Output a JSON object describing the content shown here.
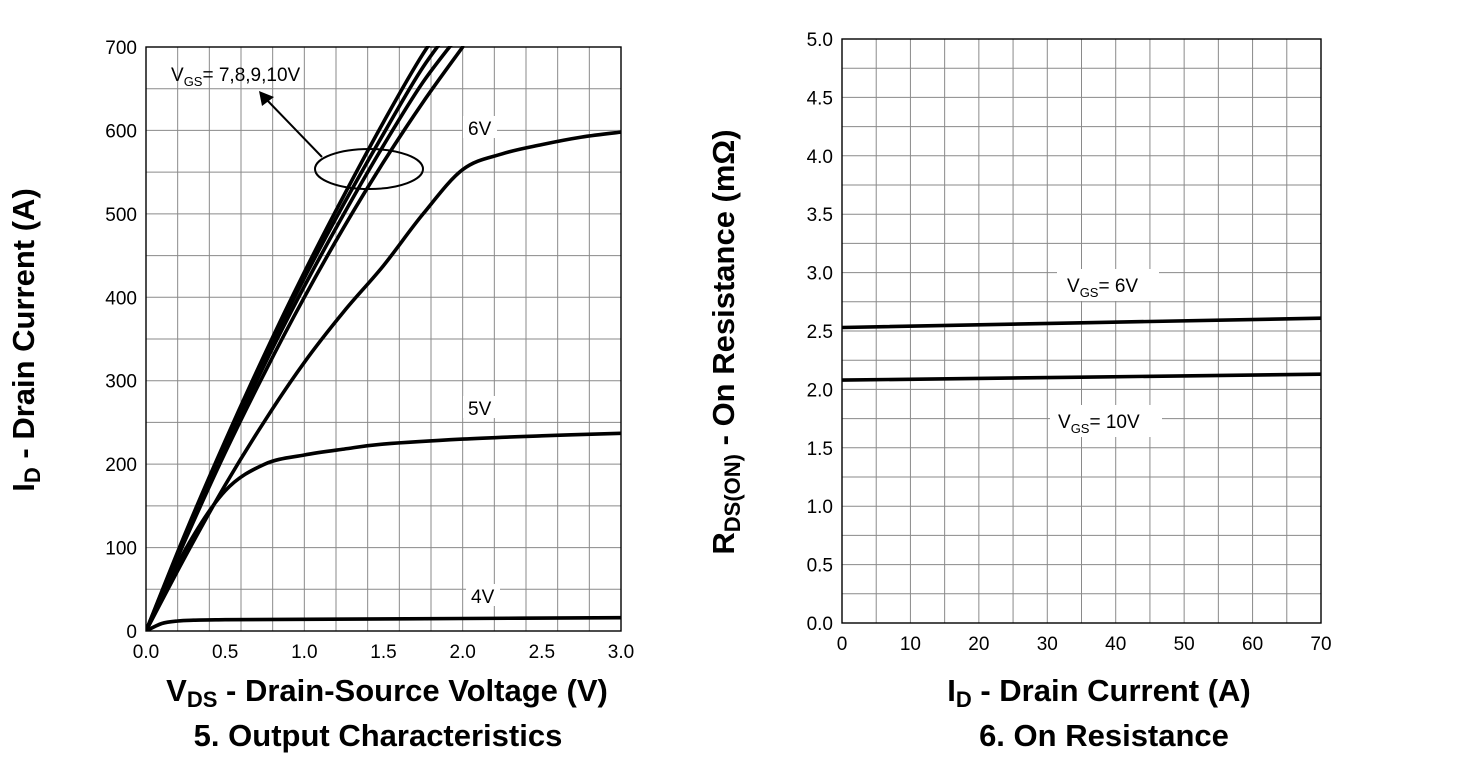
{
  "chart_data": [
    {
      "type": "line",
      "title": "",
      "caption_number": "5.",
      "caption_text": "Output Characteristics",
      "xlabel_main": "V",
      "xlabel_sub": "DS",
      "xlabel_rest": " - Drain-Source Voltage (V)",
      "ylabel_main": "I",
      "ylabel_sub": "D",
      "ylabel_rest": " - Drain Current (A)",
      "xlim": [
        0,
        3.0
      ],
      "ylim": [
        0,
        700
      ],
      "xticks": [
        "0.0",
        "0.5",
        "1.0",
        "1.5",
        "2.0",
        "2.5",
        "3.0"
      ],
      "yticks": [
        "0",
        "100",
        "200",
        "300",
        "400",
        "500",
        "600",
        "700"
      ],
      "grid": true,
      "series": [
        {
          "name": "VGS=10V",
          "x": [
            0,
            0.25,
            0.5,
            0.75,
            1.0,
            1.25,
            1.5,
            1.75,
            2.0
          ],
          "y": [
            0,
            118,
            228,
            332,
            430,
            522,
            610,
            692,
            760
          ]
        },
        {
          "name": "VGS=9V",
          "x": [
            0,
            0.25,
            0.5,
            0.75,
            1.0,
            1.25,
            1.5,
            1.75,
            2.0
          ],
          "y": [
            0,
            116,
            225,
            327,
            423,
            512,
            596,
            676,
            740
          ]
        },
        {
          "name": "VGS=8V",
          "x": [
            0,
            0.25,
            0.5,
            0.75,
            1.0,
            1.25,
            1.5,
            1.75,
            2.0
          ],
          "y": [
            0,
            113,
            220,
            320,
            413,
            500,
            582,
            658,
            720
          ]
        },
        {
          "name": "VGS=7V",
          "x": [
            0,
            0.25,
            0.5,
            0.75,
            1.0,
            1.25,
            1.5,
            1.75,
            2.0
          ],
          "y": [
            0,
            110,
            214,
            310,
            400,
            484,
            562,
            634,
            700
          ]
        },
        {
          "name": "VGS=6V",
          "x": [
            0,
            0.25,
            0.5,
            0.75,
            1.0,
            1.25,
            1.5,
            1.75,
            2.0,
            2.25,
            2.5,
            2.75,
            3.0
          ],
          "y": [
            0,
            90,
            175,
            252,
            322,
            383,
            438,
            500,
            553,
            572,
            583,
            592,
            598
          ]
        },
        {
          "name": "VGS=5V",
          "x": [
            0,
            0.25,
            0.5,
            0.75,
            1.0,
            1.25,
            1.5,
            2.0,
            2.5,
            3.0
          ],
          "y": [
            0,
            98,
            168,
            200,
            211,
            218,
            224,
            230,
            234,
            237
          ]
        },
        {
          "name": "VGS=4V",
          "x": [
            0,
            0.1,
            0.2,
            0.3,
            0.5,
            1.0,
            2.0,
            3.0
          ],
          "y": [
            0,
            9,
            12,
            13,
            13.5,
            14,
            15,
            16
          ]
        }
      ],
      "annotations": {
        "vgs_group_main": "V",
        "vgs_group_sub": "GS",
        "vgs_group_rest": "= 7,8,9,10V",
        "label_6v": "6V",
        "label_5v": "5V",
        "label_4v": "4V"
      }
    },
    {
      "type": "line",
      "title": "",
      "caption_number": "6.",
      "caption_text": "On Resistance",
      "xlabel_main": "I",
      "xlabel_sub": "D",
      "xlabel_rest": " - Drain Current (A)",
      "ylabel_main": "R",
      "ylabel_sub": "DS(ON)",
      "ylabel_rest": " - On Resistance (mΩ)",
      "xlim": [
        0,
        70
      ],
      "ylim": [
        0,
        5.0
      ],
      "xticks": [
        "0",
        "10",
        "20",
        "30",
        "40",
        "50",
        "60",
        "70"
      ],
      "yticks": [
        "0.0",
        "0.5",
        "1.0",
        "1.5",
        "2.0",
        "2.5",
        "3.0",
        "3.5",
        "4.0",
        "4.5",
        "5.0"
      ],
      "grid": true,
      "series": [
        {
          "name": "VGS=6V",
          "x": [
            0,
            70
          ],
          "y": [
            2.53,
            2.61
          ]
        },
        {
          "name": "VGS=10V",
          "x": [
            0,
            70
          ],
          "y": [
            2.08,
            2.13
          ]
        }
      ],
      "annotations": {
        "vgs6_main": "V",
        "vgs6_sub": "GS",
        "vgs6_rest": "= 6V",
        "vgs10_main": "V",
        "vgs10_sub": "GS",
        "vgs10_rest": "= 10V"
      }
    }
  ]
}
